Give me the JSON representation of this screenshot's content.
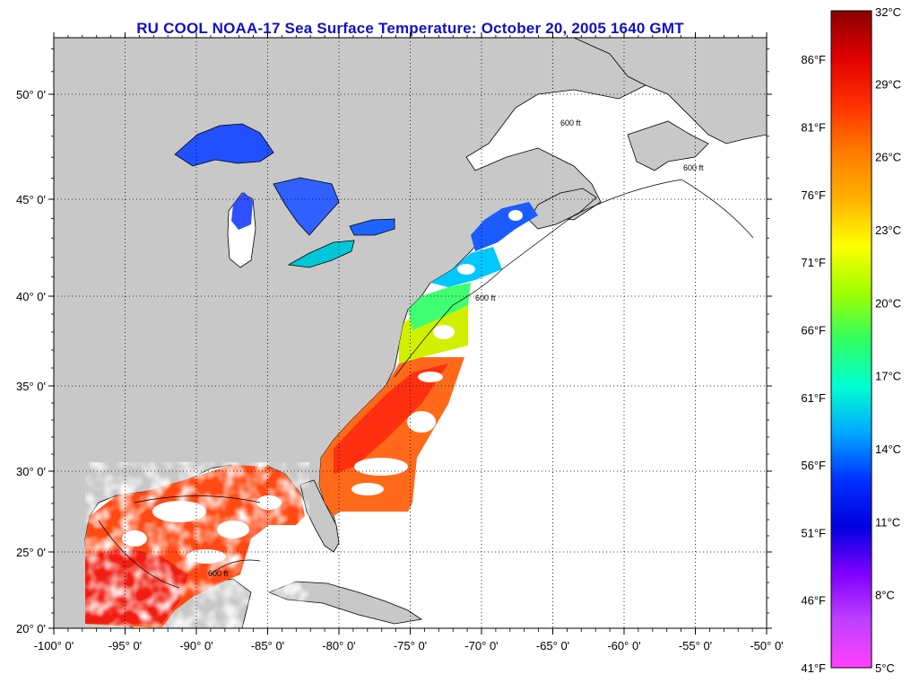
{
  "title": "RU COOL  NOAA-17  Sea Surface Temperature:  October 20, 2005 1640 GMT",
  "map": {
    "lon_range": [
      -100,
      -50
    ],
    "lat_range": [
      20,
      52.5
    ],
    "grid": true,
    "lat_ticks": [
      {
        "lat": 50,
        "label": "50° 0'"
      },
      {
        "lat": 45,
        "label": "45° 0'"
      },
      {
        "lat": 40,
        "label": "40° 0'"
      },
      {
        "lat": 35,
        "label": "35° 0'"
      },
      {
        "lat": 30,
        "label": "30° 0'"
      },
      {
        "lat": 25,
        "label": "25° 0'"
      },
      {
        "lat": 20,
        "label": "20° 0'"
      }
    ],
    "lon_ticks": [
      {
        "lon": -100,
        "label": "-100° 0'"
      },
      {
        "lon": -95,
        "label": "-95° 0'"
      },
      {
        "lon": -90,
        "label": "-90° 0'"
      },
      {
        "lon": -85,
        "label": "-85° 0'"
      },
      {
        "lon": -80,
        "label": "-80° 0'"
      },
      {
        "lon": -75,
        "label": "-75° 0'"
      },
      {
        "lon": -70,
        "label": "-70° 0'"
      },
      {
        "lon": -65,
        "label": "-65° 0'"
      },
      {
        "lon": -60,
        "label": "-60° 0'"
      },
      {
        "lon": -55,
        "label": "-55° 0'"
      },
      {
        "lon": -50,
        "label": "-50° 0'"
      }
    ],
    "land_color": "#c8c8c8",
    "no_data_color": "#ffffff",
    "contour_label": "600 ft"
  },
  "colorbar": {
    "celsius_range": [
      5,
      32
    ],
    "celsius_labels": [
      "32°C",
      "29°C",
      "26°C",
      "23°C",
      "20°C",
      "17°C",
      "14°C",
      "11°C",
      "8°C",
      "5°C"
    ],
    "celsius_values": [
      32,
      29,
      26,
      23,
      20,
      17,
      14,
      11,
      8,
      5
    ],
    "fahrenheit_labels": [
      "86°F",
      "81°F",
      "76°F",
      "71°F",
      "66°F",
      "61°F",
      "56°F",
      "51°F",
      "46°F",
      "41°F"
    ],
    "fahrenheit_values": [
      86,
      81,
      76,
      71,
      66,
      61,
      56,
      51,
      46,
      41
    ],
    "gradient_colors": [
      "#8a0000",
      "#e00000",
      "#ff3000",
      "#ff7a00",
      "#ffb000",
      "#ffff00",
      "#a0ff00",
      "#30ff60",
      "#00ffd0",
      "#00a8ff",
      "#0030ff",
      "#0000e0",
      "#8000ff",
      "#c040ff",
      "#ff40ff"
    ]
  }
}
